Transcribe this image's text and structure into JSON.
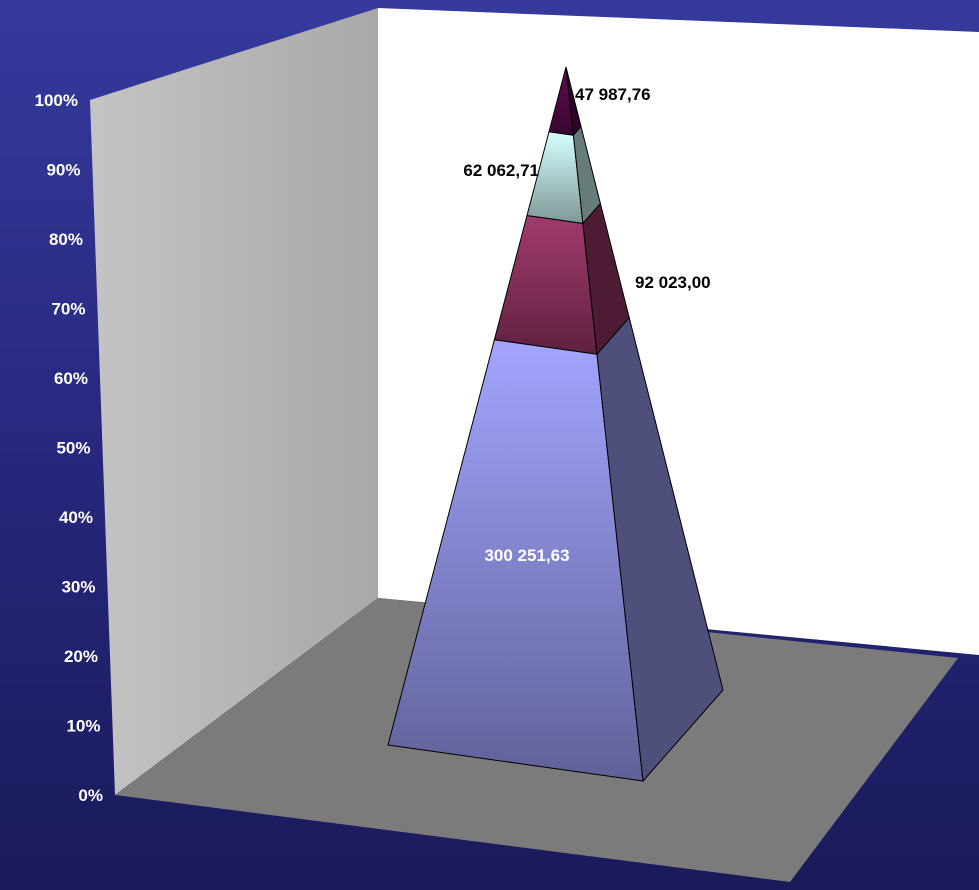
{
  "chart_data": {
    "type": "pyramid-3d-stacked-100",
    "title": "",
    "xlabel": "",
    "ylabel": "",
    "ylim": [
      0,
      100
    ],
    "y_ticks": [
      "0%",
      "10%",
      "20%",
      "30%",
      "40%",
      "50%",
      "60%",
      "70%",
      "80%",
      "90%",
      "100%"
    ],
    "series": [
      {
        "values": [
          300251.63
        ],
        "label": "300 251,63",
        "color": "#9b9df5"
      },
      {
        "values": [
          92023.0
        ],
        "label": "92 023,00",
        "color": "#9a3768"
      },
      {
        "values": [
          62062.71
        ],
        "label": "62 062,71",
        "color": "#ccf5f4"
      },
      {
        "values": [
          47987.76
        ],
        "label": "47 987,76",
        "color": "#5a0a4e"
      }
    ],
    "colors": {
      "background_top": "#353a9c",
      "background_bottom": "#1a1a5a",
      "back_wall": "#ffffff",
      "side_wall": "#b8b8b8",
      "floor": "#7a7a7a"
    }
  }
}
